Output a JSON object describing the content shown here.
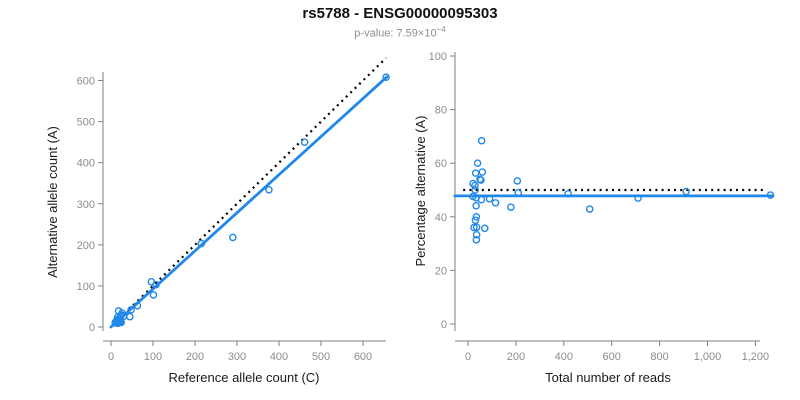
{
  "figure": {
    "title": "rs5788 - ENSG00000095303",
    "subtitle_prefix": "p-value: 7.59×10",
    "subtitle_exponent": "−4"
  },
  "colors": {
    "accent_blue": "#2288e8",
    "dotted_black": "#000000",
    "axis_gray": "#7f7f7f",
    "tick_label_gray": "#8c8c8c"
  },
  "chart_data": [
    {
      "type": "scatter",
      "name": "allele-counts-scatter",
      "xlabel": "Reference allele count (C)",
      "ylabel": "Alternative allele count (A)",
      "xlim": [
        0,
        672
      ],
      "ylim": [
        0,
        658
      ],
      "grid": false,
      "xticks": [
        0,
        100,
        200,
        300,
        400,
        500,
        600
      ],
      "xtick_labels": [
        "0",
        "100",
        "200",
        "300",
        "400",
        "500",
        "600"
      ],
      "yticks": [
        0,
        100,
        200,
        300,
        400,
        500,
        600
      ],
      "ytick_labels": [
        "0",
        "100",
        "200",
        "300",
        "400",
        "500",
        "600"
      ],
      "points": [
        [
          18,
          39
        ],
        [
          16,
          24
        ],
        [
          14,
          18
        ],
        [
          26,
          34
        ],
        [
          23,
          27
        ],
        [
          25,
          29
        ],
        [
          14,
          15
        ],
        [
          10,
          11
        ],
        [
          15,
          15
        ],
        [
          11,
          10
        ],
        [
          18,
          16
        ],
        [
          30,
          26
        ],
        [
          48,
          42
        ],
        [
          63,
          52
        ],
        [
          19,
          15
        ],
        [
          101,
          78
        ],
        [
          21,
          14
        ],
        [
          19,
          12
        ],
        [
          16,
          9
        ],
        [
          23,
          13
        ],
        [
          45,
          25
        ],
        [
          24,
          12
        ],
        [
          24,
          11
        ],
        [
          96,
          110
        ],
        [
          107,
          103
        ],
        [
          215,
          203
        ],
        [
          290,
          218
        ],
        [
          376,
          334
        ],
        [
          461,
          450
        ],
        [
          655,
          608
        ]
      ],
      "lines": [
        {
          "name": "identity-line",
          "style": "dotted",
          "color": "#000000",
          "x1": 0,
          "y1": 0,
          "x2": 655,
          "y2": 655
        },
        {
          "name": "regression-line",
          "style": "solid",
          "color": "#2288e8",
          "x1": 0,
          "y1": 0,
          "x2": 657,
          "y2": 609
        }
      ]
    },
    {
      "type": "scatter",
      "name": "percentage-vs-reads-scatter",
      "xlabel": "Total number of reads",
      "ylabel": "Percentage alternative (A)",
      "xlim": [
        0,
        1290
      ],
      "ylim": [
        0,
        100
      ],
      "grid": false,
      "xticks": [
        0,
        200,
        400,
        600,
        800,
        1000,
        1200
      ],
      "xtick_labels": [
        "0",
        "200",
        "400",
        "600",
        "800",
        "1,000",
        "1,200"
      ],
      "yticks": [
        0,
        20,
        40,
        60,
        80,
        100
      ],
      "ytick_labels": [
        "0",
        "20",
        "40",
        "60",
        "80",
        "100"
      ],
      "points": [
        [
          57,
          68.4
        ],
        [
          40,
          60
        ],
        [
          32,
          56.3
        ],
        [
          60,
          56.7
        ],
        [
          50,
          54
        ],
        [
          54,
          53.7
        ],
        [
          29,
          51.7
        ],
        [
          21,
          52.4
        ],
        [
          30,
          50
        ],
        [
          21,
          47.6
        ],
        [
          34,
          47.1
        ],
        [
          56,
          46.4
        ],
        [
          90,
          46.7
        ],
        [
          115,
          45.2
        ],
        [
          34,
          44.1
        ],
        [
          179,
          43.6
        ],
        [
          35,
          40
        ],
        [
          31,
          38.7
        ],
        [
          25,
          36
        ],
        [
          36,
          36.1
        ],
        [
          70,
          35.7
        ],
        [
          36,
          33.3
        ],
        [
          35,
          31.4
        ],
        [
          206,
          53.4
        ],
        [
          210,
          49
        ],
        [
          418,
          48.6
        ],
        [
          508,
          42.9
        ],
        [
          710,
          47
        ],
        [
          911,
          49.4
        ],
        [
          1263,
          48.1
        ]
      ],
      "lines": [
        {
          "name": "null-50pct-line",
          "style": "dotted",
          "color": "#000000",
          "x1": -20,
          "y1": 50,
          "x2": 1245,
          "y2": 50
        },
        {
          "name": "fit-line",
          "style": "solid",
          "color": "#2288e8",
          "x1": -55,
          "y1": 47.8,
          "x2": 1272,
          "y2": 47.8
        }
      ]
    }
  ]
}
